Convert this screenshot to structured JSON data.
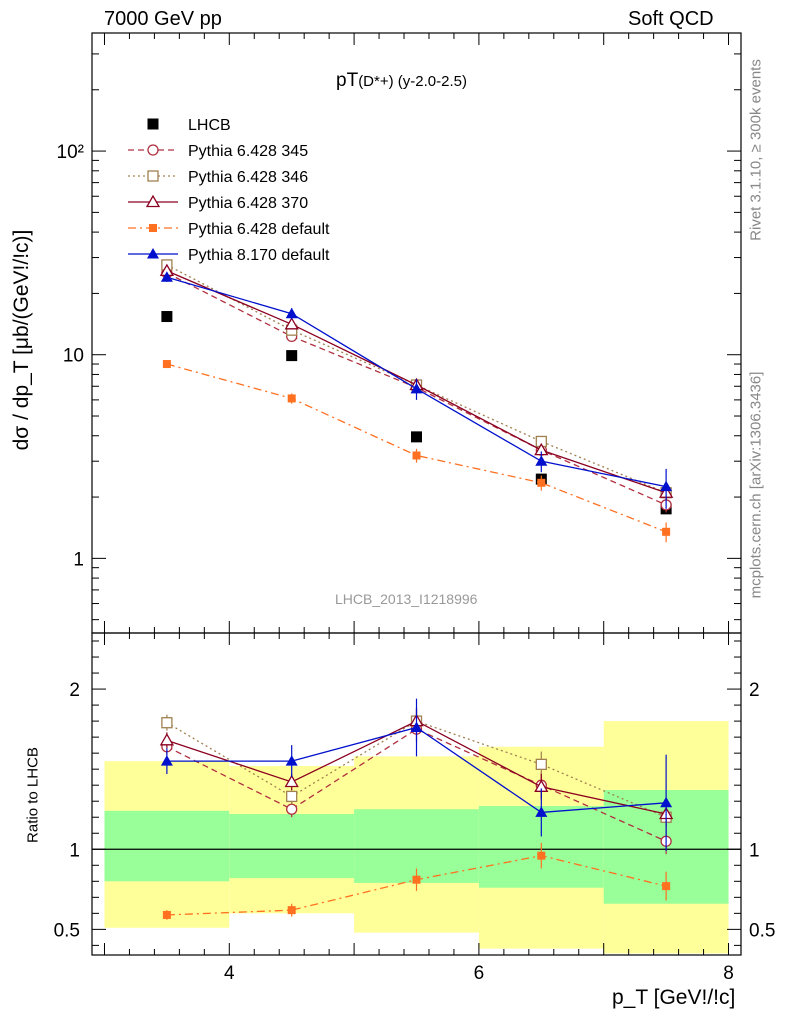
{
  "header": {
    "left": "7000 GeV pp",
    "right": "Soft QCD"
  },
  "side": {
    "rivet": "Rivet 3.1.10, ≥ 300k events",
    "mcplots": "mcplots.cern.ch [arXiv:1306.3436]"
  },
  "chart_data": [
    {
      "type": "scatter",
      "title": "pT(D*+) (y-2.0-2.5)",
      "title_main": "pT",
      "title_sub": "(D*+) (y-2.0-2.5)",
      "watermark": "LHCB_2013_I1218996",
      "xlabel": "p_T [GeV!/!c]",
      "ylabel": "dσ / dp_T [μb/(GeV!/!c)]",
      "yscale": "log",
      "xlim": [
        2.9,
        8.1
      ],
      "ylim": [
        0.43,
        380
      ],
      "ytick_labels": [
        "1",
        "10",
        "10²"
      ],
      "ytick_values": [
        1,
        10,
        100
      ],
      "legend_position": "top-left",
      "series": [
        {
          "name": "LHCB",
          "color": "#000000",
          "marker": "square-filled",
          "line": "none",
          "x": [
            3.5,
            4.5,
            5.5,
            6.5,
            7.5
          ],
          "y": [
            15.4,
            9.9,
            3.95,
            2.45,
            1.75
          ],
          "err": [
            0.3,
            0.2,
            0.1,
            0.1,
            0.08
          ]
        },
        {
          "name": "Pythia 6.428 345",
          "color": "#b03040",
          "marker": "circle-open",
          "line": "dashed",
          "x": [
            3.5,
            4.5,
            5.5,
            6.5,
            7.5
          ],
          "y": [
            25.2,
            12.3,
            6.9,
            3.4,
            1.83
          ],
          "err": [
            1.0,
            0.6,
            0.4,
            0.2,
            0.15
          ]
        },
        {
          "name": "Pythia 6.428 346",
          "color": "#a08050",
          "marker": "square-open",
          "line": "dotted",
          "x": [
            3.5,
            4.5,
            5.5,
            6.5,
            7.5
          ],
          "y": [
            27.6,
            13.2,
            7.1,
            3.75,
            2.1
          ],
          "err": [
            1.0,
            0.6,
            0.4,
            0.2,
            0.15
          ]
        },
        {
          "name": "Pythia 6.428 370",
          "color": "#8b0020",
          "marker": "triangle-open",
          "line": "solid",
          "x": [
            3.5,
            4.5,
            5.5,
            6.5,
            7.5
          ],
          "y": [
            25.8,
            14.1,
            7.1,
            3.4,
            2.1
          ],
          "err": [
            1.0,
            0.6,
            0.4,
            0.2,
            0.15
          ]
        },
        {
          "name": "Pythia 6.428 default",
          "color": "#ff7020",
          "marker": "square-filled-small",
          "line": "dashdot",
          "x": [
            3.5,
            4.5,
            5.5,
            6.5,
            7.5
          ],
          "y": [
            9.0,
            6.1,
            3.2,
            2.35,
            1.35
          ],
          "err": [
            0.4,
            0.35,
            0.25,
            0.2,
            0.15
          ]
        },
        {
          "name": "Pythia 8.170 default",
          "color": "#0010cc",
          "marker": "triangle-filled",
          "line": "solid",
          "x": [
            3.5,
            4.5,
            5.5,
            6.5,
            7.5
          ],
          "y": [
            24.0,
            15.9,
            6.8,
            3.0,
            2.25
          ],
          "err": [
            1.2,
            1.0,
            0.8,
            0.35,
            0.5
          ]
        }
      ]
    },
    {
      "type": "scatter",
      "title": "",
      "xlabel": "p_T [GeV!/!c]",
      "ylabel": "Ratio to LHCB",
      "xlim": [
        2.9,
        8.1
      ],
      "ylim": [
        0.34,
        2.35
      ],
      "ytick_labels": [
        "0.5",
        "1",
        "2"
      ],
      "ytick_values": [
        0.5,
        1,
        2
      ],
      "xtick_labels": [
        "4",
        "6",
        "8"
      ],
      "xtick_values": [
        4,
        6,
        8
      ],
      "reference_line": 1,
      "bands": {
        "edges": [
          3.0,
          4.0,
          5.0,
          6.0,
          7.0,
          8.0
        ],
        "green_lo": [
          0.8,
          0.82,
          0.79,
          0.76,
          0.66
        ],
        "green_hi": [
          1.24,
          1.22,
          1.25,
          1.27,
          1.37
        ],
        "yellow_lo": [
          0.51,
          0.6,
          0.48,
          0.38,
          0.35
        ],
        "yellow_hi": [
          1.55,
          1.52,
          1.58,
          1.64,
          1.8
        ],
        "green_color": "#99ff99",
        "yellow_color": "#ffff99"
      },
      "series": [
        {
          "name": "Pythia 6.428 345",
          "color": "#b03040",
          "marker": "circle-open",
          "line": "dashed",
          "x": [
            3.5,
            4.5,
            5.5,
            6.5,
            7.5
          ],
          "y": [
            1.64,
            1.25,
            1.75,
            1.4,
            1.05
          ],
          "err": [
            0.05,
            0.05,
            0.08,
            0.08,
            0.08
          ]
        },
        {
          "name": "Pythia 6.428 346",
          "color": "#a08050",
          "marker": "square-open",
          "line": "dotted",
          "x": [
            3.5,
            4.5,
            5.5,
            6.5,
            7.5
          ],
          "y": [
            1.79,
            1.33,
            1.8,
            1.53,
            1.2
          ],
          "err": [
            0.05,
            0.05,
            0.08,
            0.08,
            0.08
          ]
        },
        {
          "name": "Pythia 6.428 370",
          "color": "#8b0020",
          "marker": "triangle-open",
          "line": "solid",
          "x": [
            3.5,
            4.5,
            5.5,
            6.5,
            7.5
          ],
          "y": [
            1.68,
            1.42,
            1.8,
            1.39,
            1.22
          ],
          "err": [
            0.05,
            0.05,
            0.08,
            0.08,
            0.08
          ]
        },
        {
          "name": "Pythia 6.428 default",
          "color": "#ff7020",
          "marker": "square-filled-small",
          "line": "dashdot",
          "x": [
            3.5,
            4.5,
            5.5,
            6.5,
            7.5
          ],
          "y": [
            0.59,
            0.62,
            0.81,
            0.96,
            0.77
          ],
          "err": [
            0.03,
            0.04,
            0.07,
            0.08,
            0.09
          ]
        },
        {
          "name": "Pythia 8.170 default",
          "color": "#0010cc",
          "marker": "triangle-filled",
          "line": "solid",
          "x": [
            3.5,
            4.5,
            5.5,
            6.5,
            7.5
          ],
          "y": [
            1.55,
            1.55,
            1.76,
            1.23,
            1.29
          ],
          "err": [
            0.08,
            0.1,
            0.18,
            0.15,
            0.3
          ]
        }
      ]
    }
  ]
}
